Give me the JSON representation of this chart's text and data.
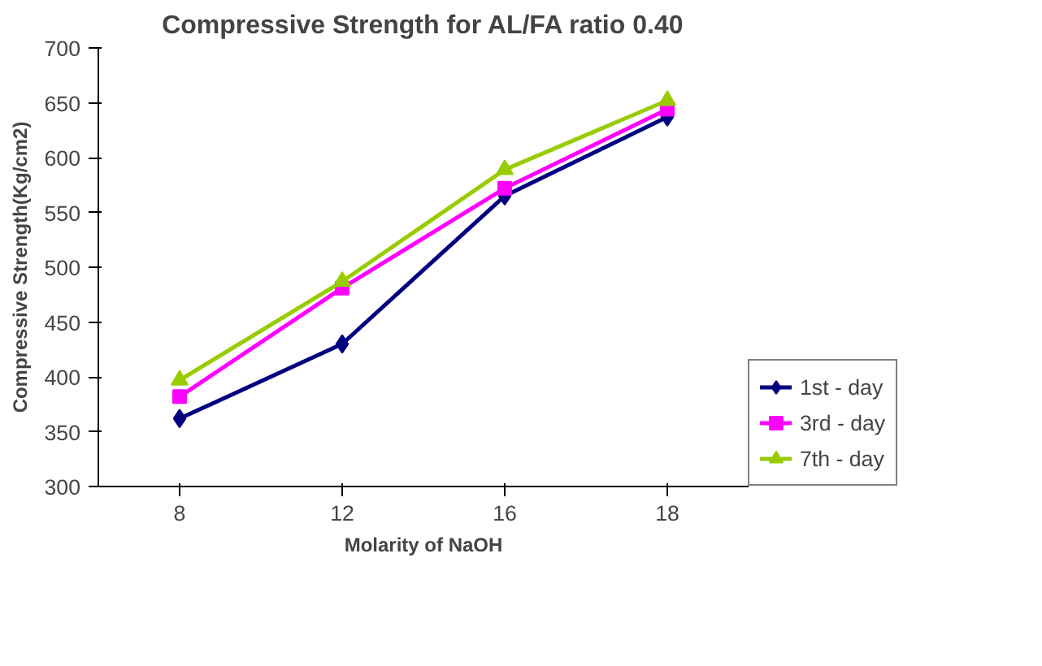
{
  "chart_data": {
    "type": "line",
    "title": "Compressive Strength for AL/FA ratio 0.40",
    "xlabel": "Molarity of NaOH",
    "ylabel": "Compressive Strength(Kg/cm2)",
    "categories": [
      "8",
      "12",
      "16",
      "18"
    ],
    "series": [
      {
        "name": "1st - day",
        "color": "#000080",
        "marker": "diamond",
        "values": [
          362,
          430,
          565,
          637
        ]
      },
      {
        "name": "3rd - day",
        "color": "#ff00ff",
        "marker": "square",
        "values": [
          382,
          481,
          572,
          644
        ]
      },
      {
        "name": "7th - day",
        "color": "#99cc00",
        "marker": "triangle",
        "values": [
          397,
          487,
          589,
          652
        ]
      }
    ],
    "ylim": [
      300,
      700
    ],
    "yticks": [
      300,
      350,
      400,
      450,
      500,
      550,
      600,
      650,
      700
    ],
    "grid": false,
    "legend": "right",
    "line_style": "solid"
  }
}
